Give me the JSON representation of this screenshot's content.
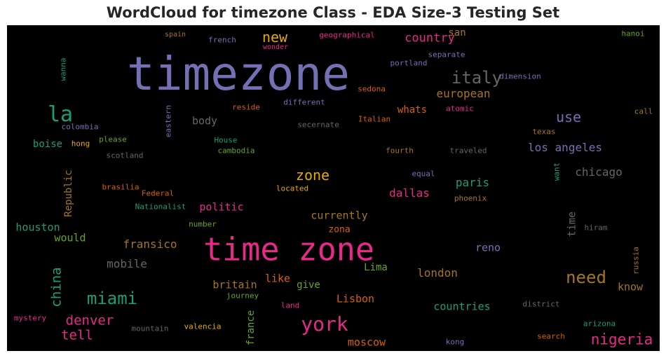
{
  "chart_data": {
    "type": "wordcloud",
    "title": "WordCloud for timezone Class - EDA Size-3 Testing Set",
    "words": [
      {
        "text": "timezone",
        "size": 66,
        "color": "#7570b3"
      },
      {
        "text": "time zone",
        "size": 45,
        "color": "#e7298a"
      },
      {
        "text": "la",
        "size": 30,
        "color": "#1b9e77"
      },
      {
        "text": "york",
        "size": 28,
        "color": "#e7298a"
      },
      {
        "text": "italy",
        "size": 24,
        "color": "#666666"
      },
      {
        "text": "need",
        "size": 24,
        "color": "#a6761d"
      },
      {
        "text": "miami",
        "size": 24,
        "color": "#1b9e77"
      },
      {
        "text": "new",
        "size": 20,
        "color": "#e6ab02"
      },
      {
        "text": "use",
        "size": 20,
        "color": "#7570b3"
      },
      {
        "text": "zone",
        "size": 20,
        "color": "#e6ab02"
      },
      {
        "text": "nigeria",
        "size": 21,
        "color": "#e7298a"
      },
      {
        "text": "denver",
        "size": 19,
        "color": "#e7298a"
      },
      {
        "text": "tell",
        "size": 19,
        "color": "#e7298a"
      },
      {
        "text": "china",
        "size": 19,
        "color": "#1b9e77"
      },
      {
        "text": "country",
        "size": 17,
        "color": "#e7298a"
      },
      {
        "text": "european",
        "size": 16,
        "color": "#a6761d"
      },
      {
        "text": "los angeles",
        "size": 16,
        "color": "#7570b3"
      },
      {
        "text": "chicago",
        "size": 16,
        "color": "#666666"
      },
      {
        "text": "dallas",
        "size": 16,
        "color": "#e7298a"
      },
      {
        "text": "paris",
        "size": 16,
        "color": "#1b9e77"
      },
      {
        "text": "mobile",
        "size": 16,
        "color": "#666666"
      },
      {
        "text": "fransico",
        "size": 16,
        "color": "#a6761d"
      },
      {
        "text": "london",
        "size": 16,
        "color": "#a6761d"
      },
      {
        "text": "currently",
        "size": 15,
        "color": "#a6761d"
      },
      {
        "text": "politic",
        "size": 15,
        "color": "#e7298a"
      },
      {
        "text": "body",
        "size": 15,
        "color": "#666666"
      },
      {
        "text": "whats",
        "size": 14,
        "color": "#d95f02"
      },
      {
        "text": "like",
        "size": 15,
        "color": "#d95f02"
      },
      {
        "text": "britain",
        "size": 15,
        "color": "#a6761d"
      },
      {
        "text": "Lisbon",
        "size": 15,
        "color": "#d95f02"
      },
      {
        "text": "countries",
        "size": 15,
        "color": "#1b9e77"
      },
      {
        "text": "moscow",
        "size": 15,
        "color": "#d95f02"
      },
      {
        "text": "houston",
        "size": 15,
        "color": "#1b9e77"
      },
      {
        "text": "would",
        "size": 15,
        "color": "#66a61e"
      },
      {
        "text": "reno",
        "size": 15,
        "color": "#7570b3"
      },
      {
        "text": "know",
        "size": 15,
        "color": "#a6761d"
      },
      {
        "text": "time",
        "size": 15,
        "color": "#666666"
      },
      {
        "text": "boise",
        "size": 14,
        "color": "#1b9e77"
      },
      {
        "text": "san",
        "size": 14,
        "color": "#a6761d"
      },
      {
        "text": "Lima",
        "size": 14,
        "color": "#66a61e"
      },
      {
        "text": "give",
        "size": 14,
        "color": "#66a61e"
      },
      {
        "text": "zona",
        "size": 13,
        "color": "#d95f02"
      },
      {
        "text": "france",
        "size": 14,
        "color": "#66a61e"
      },
      {
        "text": "Republic",
        "size": 14,
        "color": "#a6761d"
      },
      {
        "text": "spain",
        "size": 10,
        "color": "#a6761d"
      },
      {
        "text": "french",
        "size": 11,
        "color": "#7570b3"
      },
      {
        "text": "wonder",
        "size": 10,
        "color": "#e7298a"
      },
      {
        "text": "geographical",
        "size": 11,
        "color": "#e7298a"
      },
      {
        "text": "separate",
        "size": 11,
        "color": "#7570b3"
      },
      {
        "text": "portland",
        "size": 11,
        "color": "#7570b3"
      },
      {
        "text": "hanoi",
        "size": 11,
        "color": "#66a61e"
      },
      {
        "text": "dimension",
        "size": 11,
        "color": "#7570b3"
      },
      {
        "text": "sedona",
        "size": 11,
        "color": "#d95f02"
      },
      {
        "text": "different",
        "size": 11,
        "color": "#7570b3"
      },
      {
        "text": "reside",
        "size": 11,
        "color": "#d95f02"
      },
      {
        "text": "atomic",
        "size": 11,
        "color": "#e7298a"
      },
      {
        "text": "call",
        "size": 11,
        "color": "#a6761d"
      },
      {
        "text": "wanna",
        "size": 11,
        "color": "#1b9e77"
      },
      {
        "text": "colombia",
        "size": 11,
        "color": "#7570b3"
      },
      {
        "text": "eastern",
        "size": 11,
        "color": "#7570b3"
      },
      {
        "text": "Italian",
        "size": 11,
        "color": "#d95f02"
      },
      {
        "text": "secernate",
        "size": 11,
        "color": "#666666"
      },
      {
        "text": "texas",
        "size": 11,
        "color": "#a6761d"
      },
      {
        "text": "hong",
        "size": 11,
        "color": "#e6ab02"
      },
      {
        "text": "please",
        "size": 11,
        "color": "#66a61e"
      },
      {
        "text": "House",
        "size": 11,
        "color": "#1b9e77"
      },
      {
        "text": "scotland",
        "size": 11,
        "color": "#666666"
      },
      {
        "text": "cambodia",
        "size": 11,
        "color": "#66a61e"
      },
      {
        "text": "fourth",
        "size": 11,
        "color": "#a6761d"
      },
      {
        "text": "traveled",
        "size": 11,
        "color": "#666666"
      },
      {
        "text": "want",
        "size": 11,
        "color": "#1b9e77"
      },
      {
        "text": "equal",
        "size": 11,
        "color": "#7570b3"
      },
      {
        "text": "brasilia",
        "size": 11,
        "color": "#d95f02"
      },
      {
        "text": "Federal",
        "size": 11,
        "color": "#d95f02"
      },
      {
        "text": "located",
        "size": 11,
        "color": "#e6ab02"
      },
      {
        "text": "phoenix",
        "size": 11,
        "color": "#a6761d"
      },
      {
        "text": "Nationalist",
        "size": 11,
        "color": "#1b9e77"
      },
      {
        "text": "number",
        "size": 11,
        "color": "#66a61e"
      },
      {
        "text": "hiram",
        "size": 11,
        "color": "#666666"
      },
      {
        "text": "russia",
        "size": 11,
        "color": "#a6761d"
      },
      {
        "text": "journey",
        "size": 11,
        "color": "#66a61e"
      },
      {
        "text": "district",
        "size": 11,
        "color": "#666666"
      },
      {
        "text": "land",
        "size": 11,
        "color": "#e7298a"
      },
      {
        "text": "mystery",
        "size": 11,
        "color": "#e7298a"
      },
      {
        "text": "mountain",
        "size": 11,
        "color": "#666666"
      },
      {
        "text": "valencia",
        "size": 11,
        "color": "#e6ab02"
      },
      {
        "text": "arizona",
        "size": 11,
        "color": "#1b9e77"
      },
      {
        "text": "kong",
        "size": 11,
        "color": "#7570b3"
      },
      {
        "text": "search",
        "size": 11,
        "color": "#d95f02"
      }
    ]
  }
}
